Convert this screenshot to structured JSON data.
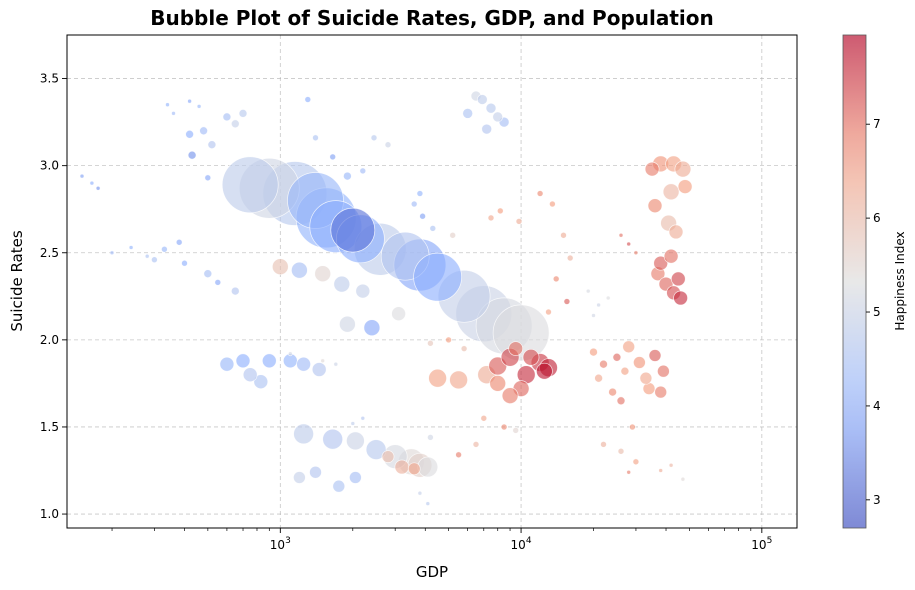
{
  "chart_data": {
    "type": "scatter",
    "title": "Bubble Plot of Suicide Rates, GDP, and Population",
    "xlabel": "GDP",
    "ylabel": "Suicide Rates",
    "x_scale": "log",
    "xlim": [
      130,
      140000
    ],
    "ylim": [
      0.92,
      3.75
    ],
    "x_ticks": [
      {
        "value": 1000,
        "label": "10^3"
      },
      {
        "value": 10000,
        "label": "10^4"
      },
      {
        "value": 100000,
        "label": "10^5"
      }
    ],
    "y_ticks": [
      1.0,
      1.5,
      2.0,
      2.5,
      3.0,
      3.5
    ],
    "grid": true,
    "colorbar": {
      "label": "Happiness Index",
      "min": 2.7,
      "max": 7.95,
      "ticks": [
        3,
        4,
        5,
        6,
        7
      ],
      "colormap": "coolwarm"
    },
    "size_variable": "Population",
    "points": [
      [
        750,
        2.89,
        4.8,
        28
      ],
      [
        900,
        2.87,
        5.1,
        30
      ],
      [
        1150,
        2.84,
        4.7,
        32
      ],
      [
        1400,
        2.8,
        4.2,
        28
      ],
      [
        1550,
        2.7,
        4.1,
        30
      ],
      [
        1700,
        2.65,
        4.0,
        26
      ],
      [
        2000,
        2.63,
        3.2,
        22
      ],
      [
        2150,
        2.58,
        4.0,
        24
      ],
      [
        2600,
        2.52,
        4.8,
        26
      ],
      [
        3300,
        2.48,
        4.6,
        24
      ],
      [
        3800,
        2.43,
        3.9,
        26
      ],
      [
        4500,
        2.36,
        4.0,
        24
      ],
      [
        5800,
        2.25,
        4.9,
        26
      ],
      [
        7000,
        2.15,
        5.0,
        28
      ],
      [
        8500,
        2.08,
        5.2,
        28
      ],
      [
        10000,
        2.04,
        5.3,
        28
      ],
      [
        1200,
        2.4,
        4.4,
        8
      ],
      [
        1500,
        2.38,
        5.5,
        8
      ],
      [
        1000,
        2.42,
        5.9,
        8
      ],
      [
        1800,
        2.32,
        4.8,
        8
      ],
      [
        2200,
        2.28,
        4.9,
        7
      ],
      [
        2400,
        2.07,
        3.9,
        8
      ],
      [
        1900,
        2.09,
        5.1,
        8
      ],
      [
        3100,
        2.15,
        5.3,
        7
      ],
      [
        900,
        1.88,
        4.0,
        7
      ],
      [
        1100,
        1.88,
        4.1,
        7
      ],
      [
        1250,
        1.86,
        4.3,
        7
      ],
      [
        1450,
        1.83,
        4.6,
        7
      ],
      [
        700,
        1.88,
        4.0,
        7
      ],
      [
        600,
        1.86,
        4.2,
        7
      ],
      [
        830,
        1.76,
        4.5,
        7
      ],
      [
        750,
        1.8,
        4.6,
        7
      ],
      [
        1250,
        1.46,
        4.8,
        10
      ],
      [
        1650,
        1.43,
        4.6,
        10
      ],
      [
        2050,
        1.42,
        5.0,
        9
      ],
      [
        2500,
        1.37,
        4.7,
        10
      ],
      [
        3000,
        1.33,
        5.2,
        12
      ],
      [
        3500,
        1.3,
        5.4,
        13
      ],
      [
        3800,
        1.28,
        5.6,
        12
      ],
      [
        4100,
        1.27,
        5.3,
        10
      ],
      [
        1200,
        1.21,
        4.9,
        6
      ],
      [
        1400,
        1.24,
        4.6,
        6
      ],
      [
        2050,
        1.21,
        4.4,
        6
      ],
      [
        1750,
        1.16,
        4.5,
        6
      ],
      [
        3200,
        1.27,
        6.2,
        7
      ],
      [
        3600,
        1.26,
        6.4,
        6
      ],
      [
        2800,
        1.33,
        6.0,
        6
      ],
      [
        4500,
        1.78,
        6.5,
        9
      ],
      [
        5500,
        1.77,
        6.4,
        9
      ],
      [
        7200,
        1.8,
        6.3,
        9
      ],
      [
        8000,
        1.85,
        7.2,
        9
      ],
      [
        9000,
        1.9,
        7.4,
        9
      ],
      [
        10500,
        1.8,
        7.6,
        9
      ],
      [
        12000,
        1.87,
        7.5,
        9
      ],
      [
        13000,
        1.84,
        7.7,
        9
      ],
      [
        10000,
        1.72,
        7.1,
        8
      ],
      [
        9000,
        1.68,
        6.9,
        8
      ],
      [
        8000,
        1.75,
        6.8,
        8
      ],
      [
        11000,
        1.9,
        7.3,
        8
      ],
      [
        9500,
        1.95,
        7.0,
        7
      ],
      [
        12500,
        1.82,
        7.8,
        8
      ],
      [
        38000,
        3.01,
        6.7,
        8
      ],
      [
        43000,
        3.01,
        6.5,
        8
      ],
      [
        47000,
        2.98,
        6.3,
        8
      ],
      [
        35000,
        2.98,
        6.9,
        7
      ],
      [
        42000,
        2.85,
        6.1,
        8
      ],
      [
        48000,
        2.88,
        6.6,
        7
      ],
      [
        36000,
        2.77,
        6.8,
        7
      ],
      [
        41000,
        2.67,
        6.0,
        8
      ],
      [
        44000,
        2.62,
        6.3,
        7
      ],
      [
        37000,
        2.38,
        6.9,
        7
      ],
      [
        40000,
        2.32,
        7.1,
        7
      ],
      [
        43000,
        2.27,
        7.3,
        7
      ],
      [
        46000,
        2.24,
        7.6,
        7
      ],
      [
        38000,
        2.44,
        7.2,
        7
      ],
      [
        45000,
        2.35,
        7.4,
        7
      ],
      [
        42000,
        2.48,
        7.0,
        7
      ],
      [
        39000,
        1.82,
        7.0,
        6
      ],
      [
        34000,
        1.72,
        6.6,
        6
      ],
      [
        31000,
        1.87,
        6.7,
        6
      ],
      [
        28000,
        1.96,
        6.5,
        6
      ],
      [
        36000,
        1.91,
        7.2,
        6
      ],
      [
        33000,
        1.78,
        6.4,
        6
      ],
      [
        38000,
        1.7,
        6.9,
        6
      ],
      [
        6500,
        3.4,
        5.1,
        5
      ],
      [
        7500,
        3.33,
        4.7,
        5
      ],
      [
        8500,
        3.25,
        4.4,
        5
      ],
      [
        6000,
        3.3,
        4.5,
        5
      ],
      [
        7200,
        3.21,
        4.6,
        5
      ],
      [
        8000,
        3.28,
        4.9,
        5
      ],
      [
        6900,
        3.38,
        4.8,
        5
      ],
      [
        500,
        2.38,
        4.4,
        4
      ],
      [
        550,
        2.33,
        3.9,
        3
      ],
      [
        650,
        2.28,
        4.6,
        4
      ],
      [
        400,
        2.44,
        4.0,
        3
      ],
      [
        380,
        2.56,
        3.9,
        3
      ],
      [
        330,
        2.52,
        4.2,
        3
      ],
      [
        300,
        2.46,
        4.5,
        3
      ],
      [
        420,
        3.18,
        4.0,
        4
      ],
      [
        480,
        3.2,
        4.3,
        4
      ],
      [
        520,
        3.12,
        4.6,
        4
      ],
      [
        600,
        3.28,
        4.4,
        4
      ],
      [
        700,
        3.3,
        4.7,
        4
      ],
      [
        650,
        3.24,
        4.9,
        4
      ],
      [
        430,
        3.06,
        3.6,
        4
      ],
      [
        500,
        2.93,
        3.9,
        3
      ],
      [
        1400,
        3.16,
        4.5,
        3
      ],
      [
        1650,
        3.05,
        3.8,
        3
      ],
      [
        1900,
        2.94,
        4.2,
        4
      ],
      [
        2200,
        2.97,
        4.3,
        3
      ],
      [
        1300,
        3.38,
        4.0,
        3
      ],
      [
        2450,
        3.16,
        4.7,
        3
      ],
      [
        2800,
        3.12,
        5.0,
        3
      ],
      [
        3800,
        2.84,
        4.1,
        3
      ],
      [
        3900,
        2.71,
        3.8,
        3
      ],
      [
        3600,
        2.78,
        4.3,
        3
      ],
      [
        4300,
        2.64,
        4.5,
        3
      ],
      [
        5200,
        2.6,
        5.6,
        3
      ],
      [
        7500,
        2.7,
        6.4,
        3
      ],
      [
        8200,
        2.74,
        6.6,
        3
      ],
      [
        9800,
        2.68,
        6.3,
        3
      ],
      [
        12000,
        2.84,
        6.8,
        3
      ],
      [
        13500,
        2.78,
        6.6,
        3
      ],
      [
        15000,
        2.6,
        6.3,
        3
      ],
      [
        16000,
        2.47,
        6.2,
        3
      ],
      [
        14000,
        2.35,
        6.8,
        3
      ],
      [
        15500,
        2.22,
        7.2,
        3
      ],
      [
        13000,
        2.16,
        6.5,
        3
      ],
      [
        5000,
        2.0,
        6.6,
        3
      ],
      [
        5800,
        1.95,
        6.0,
        3
      ],
      [
        4200,
        1.98,
        5.8,
        3
      ],
      [
        7000,
        1.55,
        6.4,
        3
      ],
      [
        8500,
        1.5,
        6.8,
        3
      ],
      [
        9500,
        1.48,
        5.5,
        3
      ],
      [
        6500,
        1.4,
        6.1,
        3
      ],
      [
        5500,
        1.34,
        6.9,
        3
      ],
      [
        4200,
        1.44,
        5.1,
        3
      ],
      [
        3800,
        1.12,
        4.9,
        2
      ],
      [
        4100,
        1.06,
        4.7,
        2
      ],
      [
        20000,
        1.93,
        6.6,
        4
      ],
      [
        22000,
        1.86,
        6.9,
        4
      ],
      [
        25000,
        1.9,
        7.1,
        4
      ],
      [
        27000,
        1.82,
        6.5,
        4
      ],
      [
        24000,
        1.7,
        6.8,
        4
      ],
      [
        21000,
        1.78,
        6.4,
        4
      ],
      [
        26000,
        1.65,
        7.0,
        4
      ],
      [
        29000,
        1.5,
        6.7,
        3
      ],
      [
        22000,
        1.4,
        6.2,
        3
      ],
      [
        26000,
        1.36,
        6.0,
        3
      ],
      [
        30000,
        1.3,
        6.5,
        3
      ],
      [
        28000,
        1.24,
        6.9,
        2
      ],
      [
        38000,
        1.25,
        6.3,
        2
      ],
      [
        42000,
        1.28,
        6.1,
        2
      ],
      [
        47000,
        1.2,
        5.4,
        2
      ],
      [
        19000,
        2.28,
        5.2,
        2
      ],
      [
        21000,
        2.2,
        5.0,
        2
      ],
      [
        23000,
        2.24,
        5.3,
        2
      ],
      [
        20000,
        2.14,
        5.1,
        2
      ],
      [
        26000,
        2.6,
        7.0,
        2
      ],
      [
        28000,
        2.55,
        7.3,
        2
      ],
      [
        30000,
        2.5,
        6.9,
        2
      ],
      [
        150,
        2.94,
        3.8,
        2
      ],
      [
        165,
        2.9,
        4.0,
        2
      ],
      [
        175,
        2.87,
        3.6,
        2
      ],
      [
        340,
        3.35,
        4.1,
        2
      ],
      [
        360,
        3.3,
        4.3,
        2
      ],
      [
        420,
        3.37,
        3.9,
        2
      ],
      [
        460,
        3.34,
        4.2,
        2
      ],
      [
        200,
        2.5,
        4.3,
        2
      ],
      [
        240,
        2.53,
        4.1,
        2
      ],
      [
        280,
        2.48,
        4.5,
        2
      ],
      [
        1100,
        1.92,
        5.1,
        2
      ],
      [
        1500,
        1.88,
        5.4,
        2
      ],
      [
        1700,
        1.86,
        5.0,
        2
      ],
      [
        2200,
        1.55,
        4.6,
        2
      ],
      [
        2000,
        1.52,
        4.8,
        2
      ]
    ]
  }
}
